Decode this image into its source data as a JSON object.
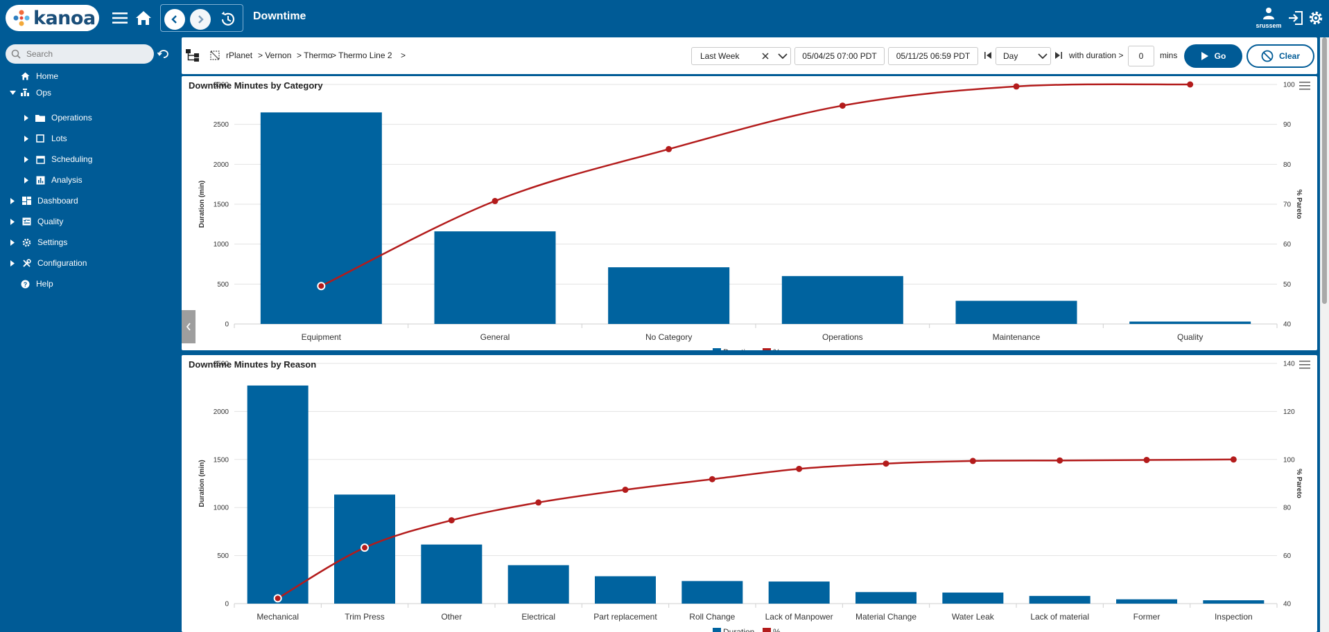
{
  "header": {
    "logo_text": "kanoa",
    "title": "Downtime",
    "user_name": "srussem",
    "icons": [
      "hamburger-icon",
      "home-icon",
      "chevron-left-icon",
      "chevron-right-icon",
      "history-icon",
      "user-icon",
      "logout-icon",
      "settings-icon"
    ]
  },
  "sidebar": {
    "search_placeholder": "Search",
    "items": [
      {
        "label": "Home",
        "icon": "home-icon"
      },
      {
        "label": "Ops",
        "icon": "ops-icon"
      },
      {
        "label": "Operations",
        "icon": "folder-icon"
      },
      {
        "label": "Lots",
        "icon": "square-icon"
      },
      {
        "label": "Scheduling",
        "icon": "calendar-icon"
      },
      {
        "label": "Analysis",
        "icon": "bar-chart-icon"
      },
      {
        "label": "Dashboard",
        "icon": "dashboard-icon"
      },
      {
        "label": "Quality",
        "icon": "checklist-icon"
      },
      {
        "label": "Settings",
        "icon": "gear-icon"
      },
      {
        "label": "Configuration",
        "icon": "tools-icon"
      },
      {
        "label": "Help",
        "icon": "help-icon"
      }
    ]
  },
  "filter": {
    "breadcrumb": [
      "rPlanet",
      "> Vernon",
      "> Thermo",
      "> Thermo Line 2",
      ">"
    ],
    "range": "Last Week",
    "start": "05/04/25 07:00 PDT",
    "end": "05/11/25 06:59 PDT",
    "interval": "Day",
    "duration_label": "with duration >",
    "duration_value": "0",
    "duration_unit": "mins",
    "go_label": "Go",
    "clear_label": "Clear"
  },
  "chart_data": [
    {
      "type": "bar",
      "title": "Downtime Minutes by Category",
      "categories": [
        "Equipment",
        "General",
        "No Category",
        "Operations",
        "Maintenance",
        "Quality"
      ],
      "series": [
        {
          "name": "Duration",
          "type": "bar",
          "axis": "left",
          "values": [
            2650,
            1160,
            710,
            600,
            290,
            30
          ]
        },
        {
          "name": "%",
          "type": "line",
          "axis": "right",
          "values": [
            49.5,
            70.8,
            83.8,
            94.7,
            99.5,
            100
          ]
        }
      ],
      "ylabel": "Duration (min)",
      "y2label": "% Pareto",
      "ylim": [
        0,
        3000
      ],
      "yticks": [
        0,
        500,
        1000,
        1500,
        2000,
        2500,
        3000
      ],
      "y2lim": [
        40,
        100
      ],
      "y2ticks": [
        40,
        50,
        60,
        70,
        80,
        90,
        100
      ],
      "colors": {
        "bar": "#00639f",
        "line": "#b31b1b"
      },
      "grid": true,
      "legend": "bottom-center"
    },
    {
      "type": "bar",
      "title": "Downtime Minutes by Reason",
      "categories": [
        "Mechanical",
        "Trim Press",
        "Other",
        "Electrical",
        "Part replacement",
        "Roll Change",
        "Lack of Manpower",
        "Material Change",
        "Water Leak",
        "Lack of material",
        "Former",
        "Inspection"
      ],
      "series": [
        {
          "name": "Duration",
          "type": "bar",
          "axis": "left",
          "values": [
            2270,
            1135,
            615,
            400,
            285,
            235,
            230,
            120,
            115,
            80,
            45,
            35
          ]
        },
        {
          "name": "%",
          "type": "line",
          "axis": "right",
          "values": [
            42.2,
            63.3,
            74.7,
            82.1,
            87.4,
            91.8,
            96.1,
            98.3,
            99.4,
            99.6,
            99.8,
            100
          ]
        }
      ],
      "ylabel": "Duration (min)",
      "y2label": "% Pareto",
      "ylim": [
        0,
        2500
      ],
      "yticks": [
        0,
        500,
        1000,
        1500,
        2000,
        2500
      ],
      "y2lim": [
        40,
        140
      ],
      "y2ticks": [
        40,
        60,
        80,
        100,
        120,
        140
      ],
      "colors": {
        "bar": "#00639f",
        "line": "#b31b1b"
      },
      "grid": true,
      "legend": "bottom-center"
    }
  ]
}
